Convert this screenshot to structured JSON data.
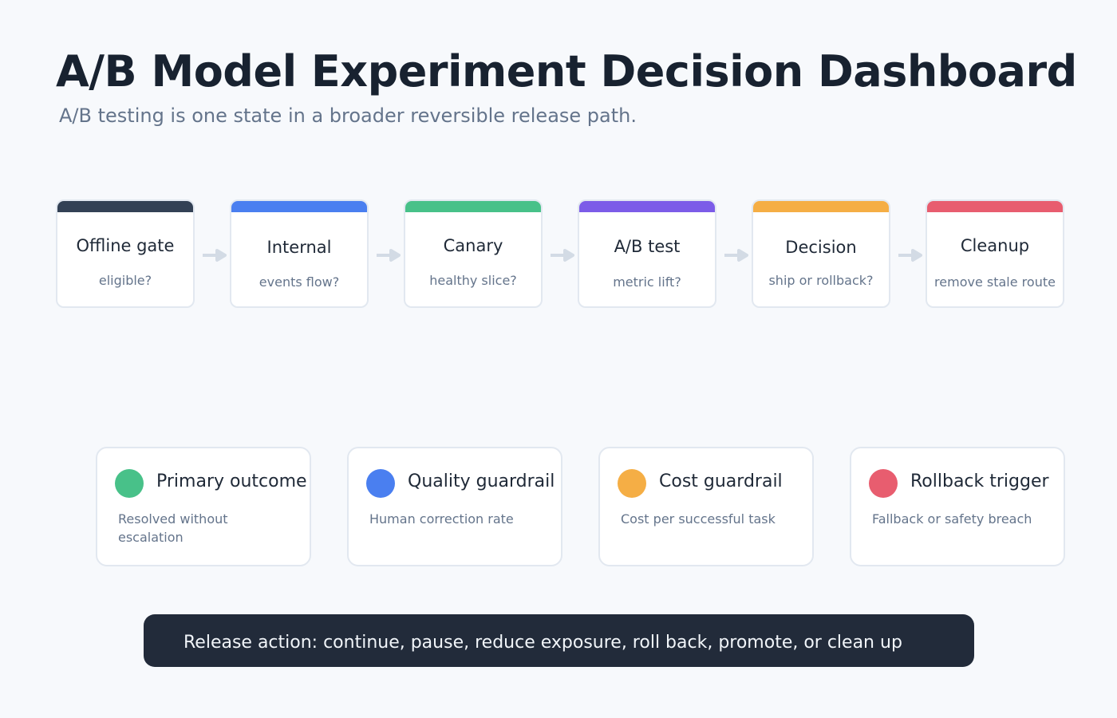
{
  "header": {
    "title": "A/B Model Experiment Decision Dashboard",
    "subtitle": "A/B testing is one state in a broader reversible release path."
  },
  "stages": [
    {
      "title": "Offline gate",
      "question": "eligible?",
      "color": "#334155"
    },
    {
      "title": "Internal",
      "question": "events flow?",
      "color": "#4a7ff0"
    },
    {
      "title": "Canary",
      "question": "healthy slice?",
      "color": "#48c189"
    },
    {
      "title": "A/B test",
      "question": "metric lift?",
      "color": "#7c5ce8"
    },
    {
      "title": "Decision",
      "question": "ship or rollback?",
      "color": "#f5ae45"
    },
    {
      "title": "Cleanup",
      "question": "remove stale route",
      "color": "#e85d6f"
    }
  ],
  "metrics": [
    {
      "title": "Primary outcome",
      "description": "Resolved without escalation",
      "color": "#48c189"
    },
    {
      "title": "Quality guardrail",
      "description": "Human correction rate",
      "color": "#4a7ff0"
    },
    {
      "title": "Cost guardrail",
      "description": "Cost per successful task",
      "color": "#f5ae45"
    },
    {
      "title": "Rollback trigger",
      "description": "Fallback or safety breach",
      "color": "#e85d6f"
    }
  ],
  "action": {
    "text": "Release action: continue, pause, reduce exposure, roll back, promote, or clean up"
  },
  "arrow_color": "#d3dbe5"
}
